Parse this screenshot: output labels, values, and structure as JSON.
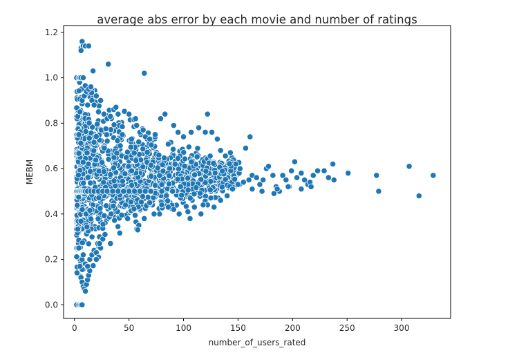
{
  "chart_data": {
    "type": "scatter",
    "title": "average abs error by each movie and number of ratings",
    "xlabel": "number_of_users_rated",
    "ylabel": "MEBM",
    "xlim": [
      -10,
      345
    ],
    "ylim": [
      -0.06,
      1.23
    ],
    "xticks": [
      0,
      50,
      100,
      150,
      200,
      250,
      300
    ],
    "yticks": [
      0.0,
      0.2,
      0.4,
      0.6,
      0.8,
      1.0,
      1.2
    ],
    "xtick_labels": [
      "0",
      "50",
      "100",
      "150",
      "200",
      "250",
      "300"
    ],
    "ytick_labels": [
      "0.0",
      "0.2",
      "0.4",
      "0.6",
      "0.8",
      "1.0",
      "1.2"
    ],
    "grid": false,
    "marker_color": "#1f77b4",
    "points": [
      [
        2,
        0.0
      ],
      [
        4,
        0.0
      ],
      [
        5,
        0.0
      ],
      [
        6,
        0.0
      ],
      [
        7,
        0.0
      ],
      [
        2,
        0.5
      ],
      [
        3,
        0.5
      ],
      [
        4,
        0.5
      ],
      [
        5,
        0.5
      ],
      [
        6,
        0.5
      ],
      [
        7,
        0.5
      ],
      [
        8,
        0.5
      ],
      [
        9,
        0.5
      ],
      [
        10,
        0.5
      ],
      [
        12,
        0.5
      ],
      [
        15,
        0.5
      ],
      [
        18,
        0.5
      ],
      [
        22,
        0.5
      ],
      [
        26,
        0.5
      ],
      [
        30,
        0.5
      ],
      [
        35,
        0.5
      ],
      [
        40,
        0.5
      ],
      [
        45,
        0.5
      ],
      [
        50,
        0.5
      ],
      [
        55,
        0.5
      ],
      [
        60,
        0.5
      ],
      [
        65,
        0.5
      ],
      [
        70,
        0.5
      ],
      [
        80,
        0.5
      ],
      [
        90,
        0.5
      ],
      [
        2,
        0.75
      ],
      [
        3,
        0.75
      ],
      [
        4,
        0.75
      ],
      [
        2,
        0.25
      ],
      [
        3,
        0.25
      ],
      [
        4,
        0.25
      ],
      [
        2,
        0.333
      ],
      [
        3,
        0.333
      ],
      [
        2,
        0.667
      ],
      [
        3,
        0.667
      ],
      [
        4,
        0.667
      ],
      [
        2,
        1.0
      ],
      [
        4,
        1.0
      ],
      [
        5,
        1.0
      ],
      [
        6,
        1.0
      ],
      [
        8,
        1.0
      ],
      [
        6,
        1.13
      ],
      [
        7,
        1.16
      ],
      [
        8,
        1.14
      ],
      [
        10,
        1.14
      ],
      [
        13,
        1.14
      ],
      [
        6,
        1.12
      ],
      [
        17,
        1.03
      ],
      [
        31,
        1.06
      ],
      [
        64,
        1.02
      ],
      [
        3,
        0.83
      ],
      [
        5,
        0.85
      ],
      [
        7,
        0.9
      ],
      [
        9,
        0.92
      ],
      [
        11,
        0.94
      ],
      [
        13,
        0.95
      ],
      [
        15,
        0.96
      ],
      [
        12,
        0.88
      ],
      [
        16,
        0.9
      ],
      [
        18,
        0.88
      ],
      [
        20,
        0.92
      ],
      [
        22,
        0.85
      ],
      [
        24,
        0.9
      ],
      [
        27,
        0.84
      ],
      [
        30,
        0.82
      ],
      [
        33,
        0.83
      ],
      [
        36,
        0.86
      ],
      [
        38,
        0.87
      ],
      [
        40,
        0.84
      ],
      [
        5,
        0.17
      ],
      [
        6,
        0.12
      ],
      [
        7,
        0.1
      ],
      [
        8,
        0.08
      ],
      [
        9,
        0.07
      ],
      [
        10,
        0.06
      ],
      [
        11,
        0.09
      ],
      [
        12,
        0.11
      ],
      [
        13,
        0.13
      ],
      [
        14,
        0.15
      ],
      [
        7,
        0.2
      ],
      [
        8,
        0.22
      ],
      [
        10,
        0.18
      ],
      [
        12,
        0.17
      ],
      [
        14,
        0.2
      ],
      [
        16,
        0.22
      ],
      [
        18,
        0.24
      ],
      [
        20,
        0.23
      ],
      [
        22,
        0.21
      ],
      [
        24,
        0.25
      ],
      [
        20,
        0.2
      ],
      [
        23,
        0.27
      ],
      [
        26,
        0.29
      ],
      [
        28,
        0.31
      ],
      [
        33,
        0.27
      ],
      [
        50,
        0.84
      ],
      [
        56,
        0.82
      ],
      [
        57,
        0.79
      ],
      [
        60,
        0.76
      ],
      [
        63,
        0.77
      ],
      [
        65,
        0.74
      ],
      [
        69,
        0.73
      ],
      [
        74,
        0.75
      ],
      [
        79,
        0.82
      ],
      [
        83,
        0.84
      ],
      [
        91,
        0.79
      ],
      [
        95,
        0.76
      ],
      [
        100,
        0.74
      ],
      [
        107,
        0.76
      ],
      [
        114,
        0.78
      ],
      [
        120,
        0.76
      ],
      [
        122,
        0.84
      ],
      [
        126,
        0.76
      ],
      [
        131,
        0.73
      ],
      [
        134,
        0.68
      ],
      [
        143,
        0.67
      ],
      [
        148,
        0.62
      ],
      [
        157,
        0.69
      ],
      [
        161,
        0.74
      ],
      [
        96,
        0.4
      ],
      [
        104,
        0.41
      ],
      [
        110,
        0.43
      ],
      [
        116,
        0.4
      ],
      [
        122,
        0.44
      ],
      [
        128,
        0.43
      ],
      [
        134,
        0.46
      ],
      [
        140,
        0.48
      ],
      [
        145,
        0.51
      ],
      [
        150,
        0.53
      ],
      [
        118,
        0.44
      ],
      [
        106,
        0.38
      ],
      [
        91,
        0.42
      ],
      [
        86,
        0.43
      ],
      [
        80,
        0.44
      ],
      [
        78,
        0.4
      ],
      [
        73,
        0.4
      ],
      [
        69,
        0.45
      ],
      [
        64,
        0.38
      ],
      [
        59,
        0.35
      ],
      [
        58,
        0.33
      ],
      [
        155,
        0.54
      ],
      [
        160,
        0.55
      ],
      [
        163,
        0.57
      ],
      [
        167,
        0.56
      ],
      [
        170,
        0.53
      ],
      [
        173,
        0.55
      ],
      [
        176,
        0.6
      ],
      [
        178,
        0.61
      ],
      [
        182,
        0.57
      ],
      [
        185,
        0.52
      ],
      [
        188,
        0.5
      ],
      [
        191,
        0.57
      ],
      [
        194,
        0.55
      ],
      [
        197,
        0.52
      ],
      [
        199,
        0.59
      ],
      [
        202,
        0.63
      ],
      [
        204,
        0.56
      ],
      [
        208,
        0.58
      ],
      [
        211,
        0.55
      ],
      [
        214,
        0.53
      ],
      [
        216,
        0.54
      ],
      [
        219,
        0.57
      ],
      [
        223,
        0.59
      ],
      [
        237,
        0.62
      ],
      [
        238,
        0.55
      ],
      [
        251,
        0.58
      ],
      [
        277,
        0.57
      ],
      [
        279,
        0.5
      ],
      [
        307,
        0.61
      ],
      [
        316,
        0.48
      ],
      [
        329,
        0.57
      ],
      [
        163,
        0.51
      ],
      [
        172,
        0.5
      ],
      [
        183,
        0.49
      ],
      [
        186,
        0.51
      ],
      [
        196,
        0.52
      ],
      [
        208,
        0.51
      ],
      [
        217,
        0.52
      ],
      [
        229,
        0.59
      ],
      [
        233,
        0.56
      ]
    ]
  }
}
